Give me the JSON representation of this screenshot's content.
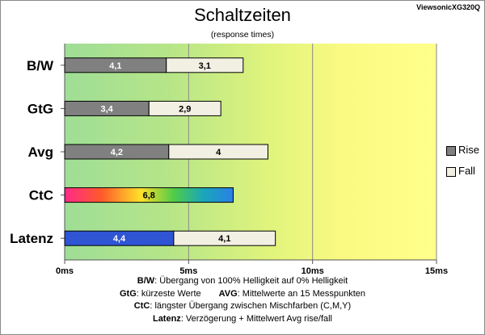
{
  "header": {
    "title": "Schaltzeiten",
    "subtitle": "(response times)",
    "model": "ViewsonicXG320Q"
  },
  "legend": [
    {
      "label": "Rise",
      "color": "#808080"
    },
    {
      "label": "Fall",
      "color": "#f2efe3"
    }
  ],
  "notes": {
    "bw_key": "B/W",
    "bw_text": ":  Übergang von 100% Helligkeit auf 0% Helligkeit",
    "gtg_key": "GtG",
    "gtg_text": ": kürzeste  Werte",
    "avg_key": "AVG",
    "avg_text": ": Mittelwerte  an 15 Messpunkten",
    "ctc_key": "CtC",
    "ctc_text": ": längster Übergang  zwischen Mischfarben  (C,M,Y)",
    "lat_key": "Latenz",
    "lat_text": ": Verzögerung  + Mittelwert  Avg rise/fall"
  },
  "chart_data": {
    "type": "bar",
    "orientation": "horizontal",
    "stacked": true,
    "categories": [
      "B/W",
      "GtG",
      "Avg",
      "CtC",
      "Latenz"
    ],
    "series": [
      {
        "name": "Rise",
        "values": [
          4.1,
          3.4,
          4.2,
          6.8,
          4.4
        ],
        "labels": [
          "4,1",
          "3,4",
          "4,2",
          "6,8",
          "4,4"
        ]
      },
      {
        "name": "Fall",
        "values": [
          3.1,
          2.9,
          4,
          null,
          4.1
        ],
        "labels": [
          "3,1",
          "2,9",
          "4",
          "",
          "4,1"
        ]
      }
    ],
    "special_fills": {
      "CtC": "rainbow",
      "Latenz": "#2f55d4"
    },
    "xlim": [
      0,
      15
    ],
    "xticks": [
      0,
      5,
      10,
      15
    ],
    "xtick_labels": [
      "0ms",
      "5ms",
      "10ms",
      "15ms"
    ],
    "grid": true,
    "background": "gradient green to yellow",
    "legend_position": "right"
  }
}
